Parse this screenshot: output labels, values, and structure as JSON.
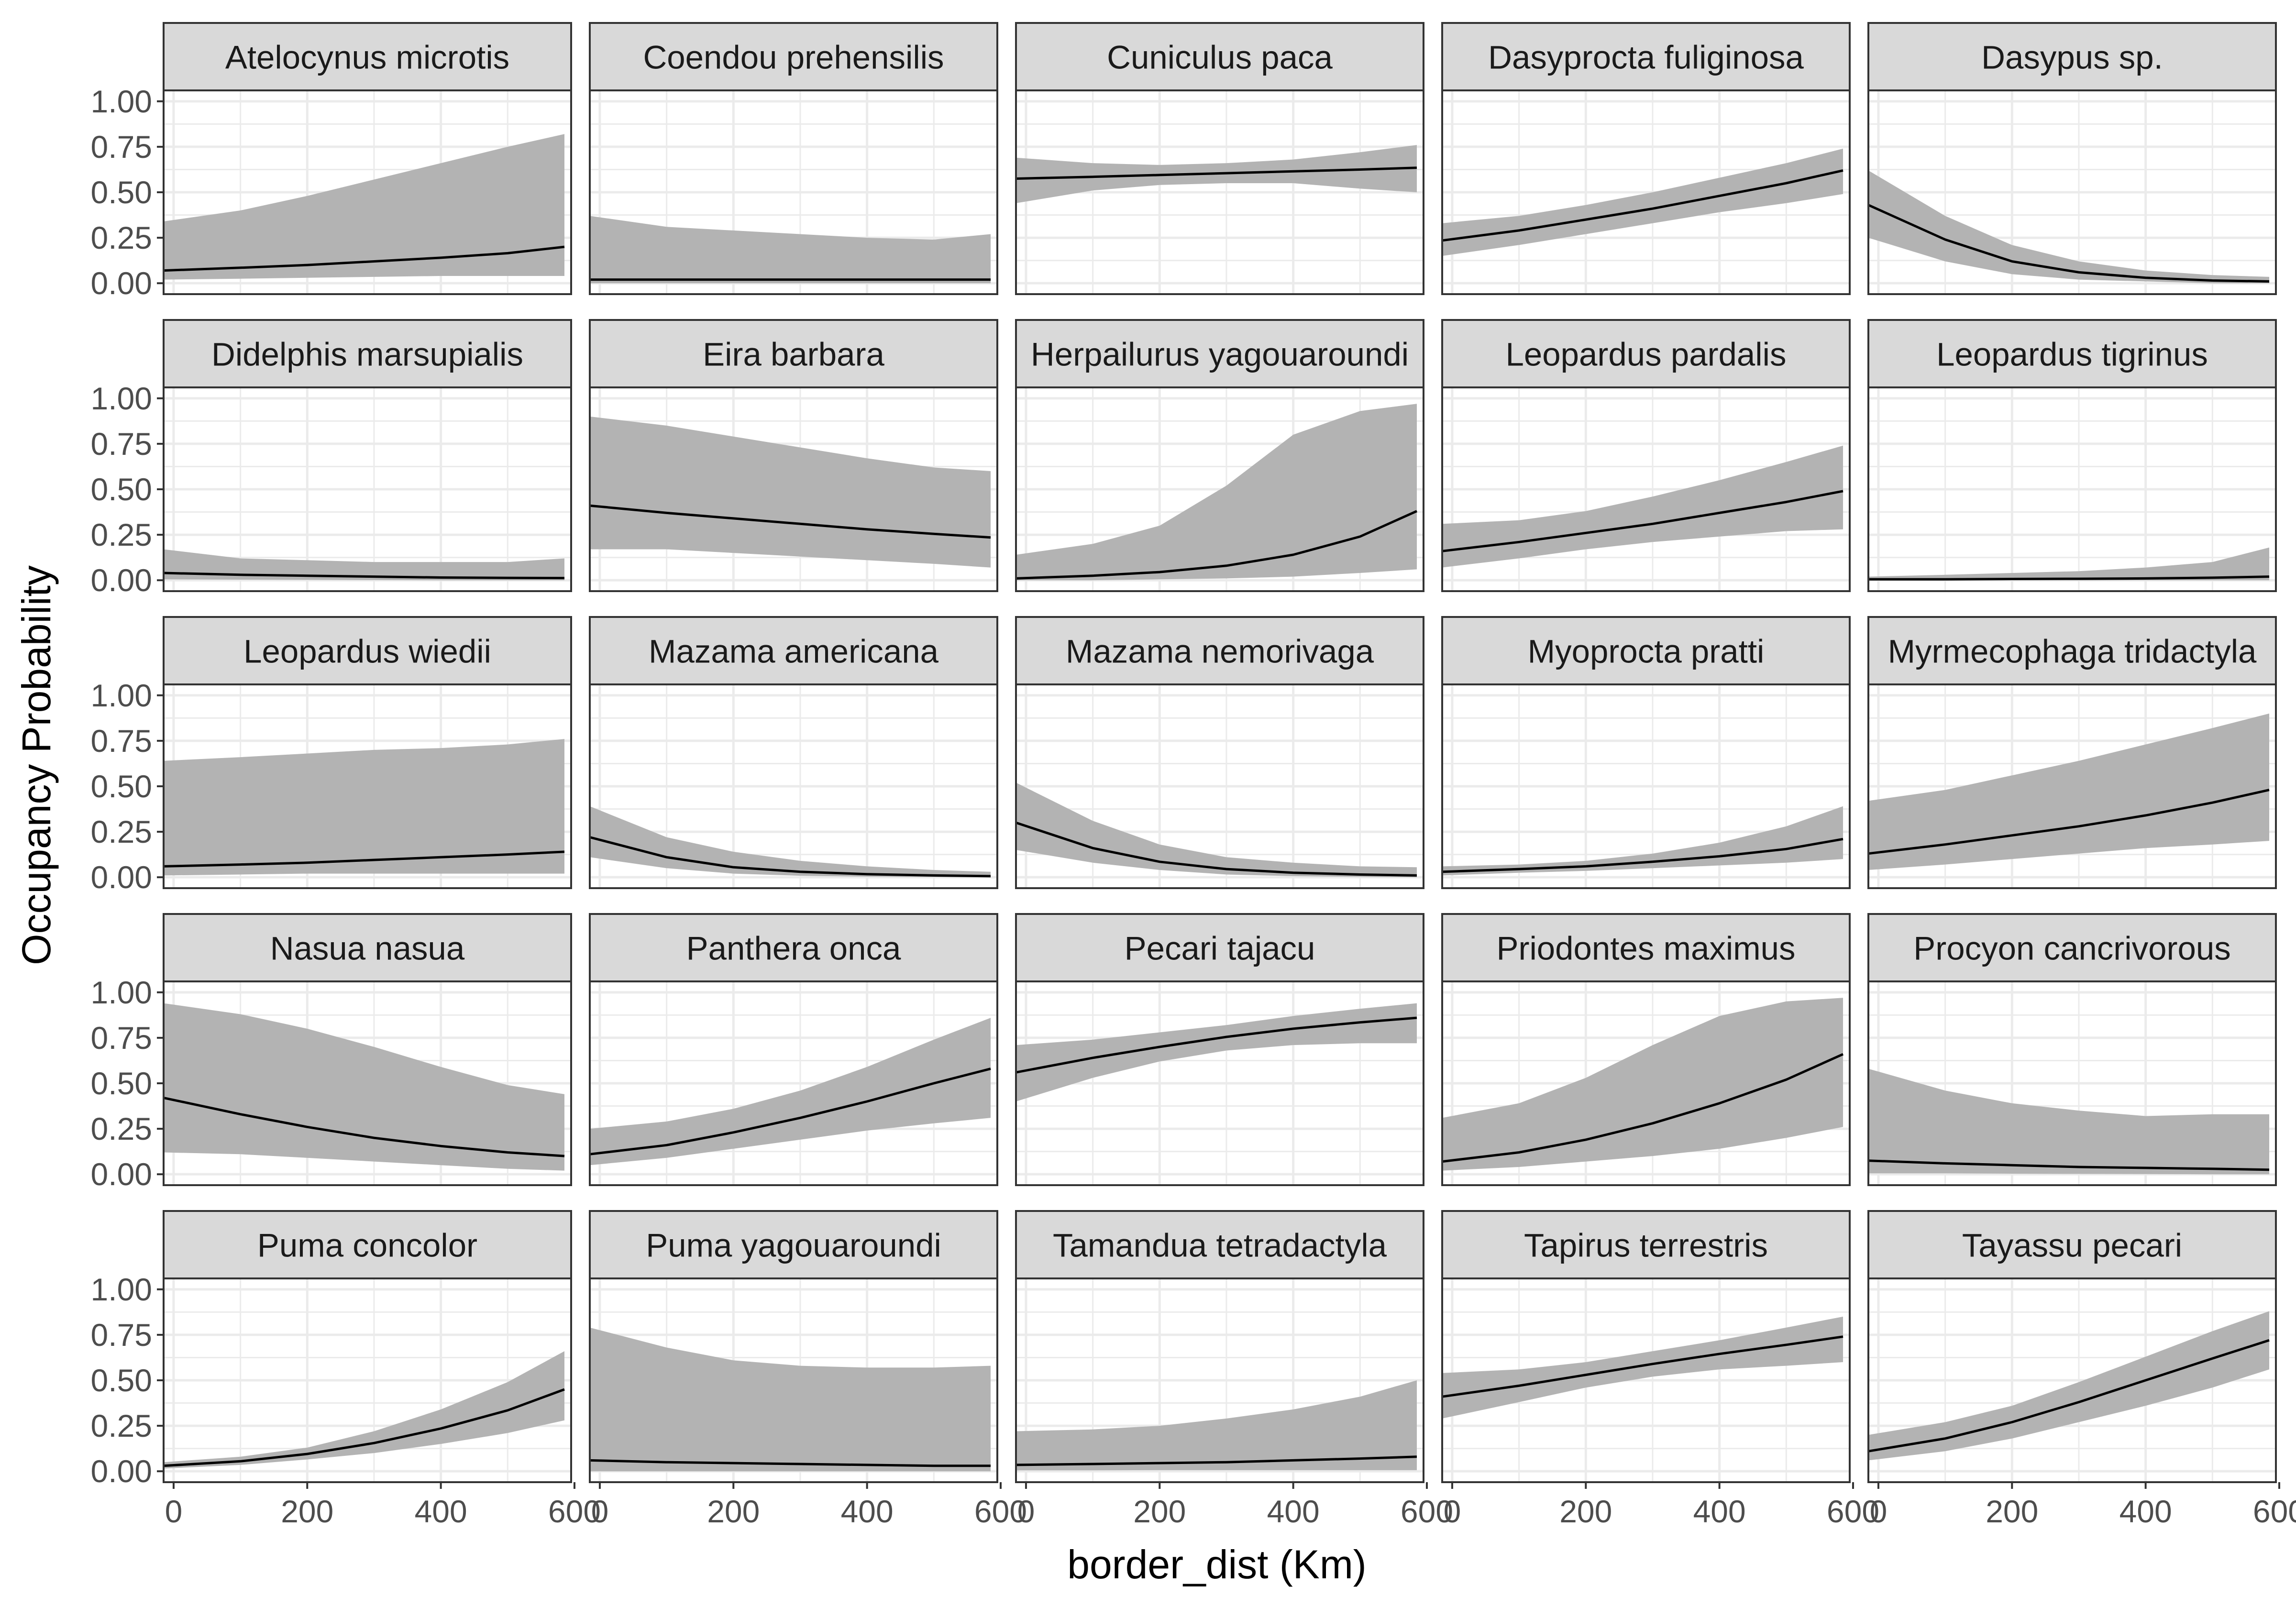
{
  "chart_data": {
    "type": "area",
    "facet_layout": "5 columns x 5 rows, shared axes",
    "grid": true,
    "theme": "bw",
    "xlabel": "border_dist (Km)",
    "ylabel": "Occupancy Probability",
    "xlim": [
      -15,
      595
    ],
    "ylim": [
      -0.06,
      1.06
    ],
    "x_ticks": [
      0,
      200,
      400,
      600
    ],
    "x_tick_labels": [
      "0",
      "200",
      "400",
      "600"
    ],
    "y_ticks": [
      0,
      0.25,
      0.5,
      0.75,
      1.0
    ],
    "y_tick_labels": [
      "0.00",
      "0.25",
      "0.50",
      "0.75",
      "1.00"
    ],
    "colors": {
      "ribbon": "#b3b3b3",
      "line": "#000000",
      "strip": "#d9d9d9",
      "grid": "#ebebeb",
      "border": "#333333"
    },
    "x": [
      -15,
      100,
      200,
      300,
      400,
      500,
      585
    ],
    "panels": [
      {
        "title": "Atelocynus microtis",
        "mean": [
          0.07,
          0.085,
          0.1,
          0.12,
          0.14,
          0.165,
          0.2
        ],
        "lower": [
          0.02,
          0.025,
          0.03,
          0.035,
          0.04,
          0.04,
          0.04
        ],
        "upper": [
          0.34,
          0.4,
          0.48,
          0.57,
          0.66,
          0.75,
          0.82
        ]
      },
      {
        "title": "Coendou prehensilis",
        "mean": [
          0.02,
          0.02,
          0.02,
          0.02,
          0.02,
          0.02,
          0.02
        ],
        "lower": [
          0.0,
          0.0,
          0.0,
          0.0,
          0.0,
          0.0,
          0.0
        ],
        "upper": [
          0.37,
          0.31,
          0.29,
          0.27,
          0.25,
          0.24,
          0.27
        ]
      },
      {
        "title": "Cuniculus paca",
        "mean": [
          0.575,
          0.585,
          0.595,
          0.605,
          0.615,
          0.625,
          0.635
        ],
        "lower": [
          0.44,
          0.51,
          0.54,
          0.55,
          0.55,
          0.52,
          0.5
        ],
        "upper": [
          0.69,
          0.66,
          0.65,
          0.66,
          0.68,
          0.72,
          0.76
        ]
      },
      {
        "title": "Dasyprocta fuliginosa",
        "mean": [
          0.235,
          0.29,
          0.35,
          0.41,
          0.48,
          0.55,
          0.62
        ],
        "lower": [
          0.15,
          0.21,
          0.27,
          0.33,
          0.39,
          0.44,
          0.49
        ],
        "upper": [
          0.33,
          0.37,
          0.43,
          0.5,
          0.58,
          0.66,
          0.74
        ]
      },
      {
        "title": "Dasypus sp.",
        "mean": [
          0.43,
          0.24,
          0.12,
          0.06,
          0.03,
          0.015,
          0.01
        ],
        "lower": [
          0.25,
          0.12,
          0.05,
          0.02,
          0.01,
          0.0,
          0.0
        ],
        "upper": [
          0.62,
          0.37,
          0.21,
          0.12,
          0.07,
          0.045,
          0.035
        ]
      },
      {
        "title": "Didelphis marsupialis",
        "mean": [
          0.04,
          0.03,
          0.025,
          0.02,
          0.015,
          0.013,
          0.012
        ],
        "lower": [
          0.005,
          0.003,
          0.002,
          0.001,
          0.0,
          0.0,
          0.0
        ],
        "upper": [
          0.17,
          0.12,
          0.11,
          0.1,
          0.1,
          0.1,
          0.12
        ]
      },
      {
        "title": "Eira barbara",
        "mean": [
          0.41,
          0.37,
          0.34,
          0.31,
          0.28,
          0.255,
          0.235
        ],
        "lower": [
          0.17,
          0.17,
          0.15,
          0.13,
          0.11,
          0.09,
          0.07
        ],
        "upper": [
          0.9,
          0.85,
          0.79,
          0.73,
          0.67,
          0.62,
          0.6
        ]
      },
      {
        "title": "Herpailurus yagouaroundi",
        "mean": [
          0.01,
          0.025,
          0.045,
          0.08,
          0.14,
          0.24,
          0.38
        ],
        "lower": [
          0.0,
          0.0,
          0.005,
          0.01,
          0.02,
          0.04,
          0.06
        ],
        "upper": [
          0.14,
          0.2,
          0.3,
          0.52,
          0.8,
          0.93,
          0.97
        ]
      },
      {
        "title": "Leopardus pardalis",
        "mean": [
          0.16,
          0.21,
          0.26,
          0.31,
          0.37,
          0.43,
          0.49
        ],
        "lower": [
          0.07,
          0.12,
          0.17,
          0.21,
          0.24,
          0.27,
          0.28
        ],
        "upper": [
          0.31,
          0.33,
          0.38,
          0.46,
          0.55,
          0.65,
          0.74
        ]
      },
      {
        "title": "Leopardus tigrinus",
        "mean": [
          0.005,
          0.005,
          0.007,
          0.008,
          0.01,
          0.014,
          0.02
        ],
        "lower": [
          0.0,
          0.0,
          0.0,
          0.0,
          0.0,
          0.0,
          0.0
        ],
        "upper": [
          0.02,
          0.03,
          0.04,
          0.05,
          0.07,
          0.1,
          0.18
        ]
      },
      {
        "title": "Leopardus wiedii",
        "mean": [
          0.06,
          0.07,
          0.08,
          0.095,
          0.11,
          0.125,
          0.14
        ],
        "lower": [
          0.01,
          0.015,
          0.02,
          0.02,
          0.02,
          0.02,
          0.02
        ],
        "upper": [
          0.64,
          0.66,
          0.68,
          0.7,
          0.71,
          0.73,
          0.76
        ]
      },
      {
        "title": "Mazama americana",
        "mean": [
          0.22,
          0.11,
          0.055,
          0.03,
          0.017,
          0.01,
          0.006
        ],
        "lower": [
          0.11,
          0.05,
          0.02,
          0.008,
          0.003,
          0.001,
          0.0
        ],
        "upper": [
          0.39,
          0.22,
          0.14,
          0.09,
          0.06,
          0.04,
          0.03
        ]
      },
      {
        "title": "Mazama nemorivaga",
        "mean": [
          0.3,
          0.16,
          0.085,
          0.045,
          0.025,
          0.015,
          0.01
        ],
        "lower": [
          0.15,
          0.08,
          0.04,
          0.015,
          0.006,
          0.002,
          0.0
        ],
        "upper": [
          0.52,
          0.31,
          0.18,
          0.11,
          0.08,
          0.06,
          0.055
        ]
      },
      {
        "title": "Myoprocta pratti",
        "mean": [
          0.03,
          0.045,
          0.06,
          0.085,
          0.115,
          0.155,
          0.21
        ],
        "lower": [
          0.01,
          0.025,
          0.035,
          0.05,
          0.065,
          0.08,
          0.1
        ],
        "upper": [
          0.06,
          0.07,
          0.09,
          0.13,
          0.19,
          0.28,
          0.39
        ]
      },
      {
        "title": "Myrmecophaga tridactyla",
        "mean": [
          0.13,
          0.18,
          0.23,
          0.28,
          0.34,
          0.41,
          0.48
        ],
        "lower": [
          0.04,
          0.07,
          0.1,
          0.13,
          0.16,
          0.18,
          0.2
        ],
        "upper": [
          0.42,
          0.48,
          0.56,
          0.64,
          0.73,
          0.82,
          0.9
        ]
      },
      {
        "title": "Nasua nasua",
        "mean": [
          0.42,
          0.33,
          0.26,
          0.2,
          0.155,
          0.12,
          0.1
        ],
        "lower": [
          0.12,
          0.11,
          0.09,
          0.07,
          0.05,
          0.03,
          0.02
        ],
        "upper": [
          0.94,
          0.88,
          0.8,
          0.7,
          0.59,
          0.49,
          0.44
        ]
      },
      {
        "title": "Panthera onca",
        "mean": [
          0.11,
          0.16,
          0.23,
          0.31,
          0.4,
          0.5,
          0.58
        ],
        "lower": [
          0.05,
          0.09,
          0.14,
          0.19,
          0.24,
          0.28,
          0.31
        ],
        "upper": [
          0.25,
          0.29,
          0.36,
          0.46,
          0.59,
          0.74,
          0.86
        ]
      },
      {
        "title": "Pecari tajacu",
        "mean": [
          0.56,
          0.64,
          0.7,
          0.755,
          0.8,
          0.835,
          0.86
        ],
        "lower": [
          0.4,
          0.53,
          0.62,
          0.68,
          0.71,
          0.72,
          0.72
        ],
        "upper": [
          0.71,
          0.74,
          0.78,
          0.82,
          0.87,
          0.91,
          0.94
        ]
      },
      {
        "title": "Priodontes maximus",
        "mean": [
          0.07,
          0.12,
          0.19,
          0.28,
          0.39,
          0.52,
          0.66
        ],
        "lower": [
          0.02,
          0.04,
          0.07,
          0.1,
          0.14,
          0.2,
          0.26
        ],
        "upper": [
          0.31,
          0.39,
          0.53,
          0.71,
          0.87,
          0.95,
          0.97
        ]
      },
      {
        "title": "Procyon cancrivorous",
        "mean": [
          0.075,
          0.06,
          0.05,
          0.04,
          0.035,
          0.03,
          0.025
        ],
        "lower": [
          0.005,
          0.005,
          0.003,
          0.002,
          0.001,
          0.0,
          0.0
        ],
        "upper": [
          0.58,
          0.46,
          0.39,
          0.35,
          0.32,
          0.33,
          0.33
        ]
      },
      {
        "title": "Puma concolor",
        "mean": [
          0.03,
          0.055,
          0.095,
          0.155,
          0.235,
          0.335,
          0.45
        ],
        "lower": [
          0.015,
          0.035,
          0.065,
          0.1,
          0.15,
          0.21,
          0.28
        ],
        "upper": [
          0.05,
          0.08,
          0.13,
          0.22,
          0.34,
          0.49,
          0.66
        ]
      },
      {
        "title": "Puma yagouaroundi",
        "mean": [
          0.06,
          0.05,
          0.045,
          0.04,
          0.035,
          0.03,
          0.03
        ],
        "lower": [
          0.0,
          0.0,
          0.0,
          0.0,
          0.0,
          0.0,
          0.0
        ],
        "upper": [
          0.79,
          0.68,
          0.61,
          0.58,
          0.57,
          0.57,
          0.58
        ]
      },
      {
        "title": "Tamandua tetradactyla",
        "mean": [
          0.035,
          0.04,
          0.045,
          0.05,
          0.06,
          0.07,
          0.08
        ],
        "lower": [
          0.005,
          0.005,
          0.006,
          0.006,
          0.006,
          0.006,
          0.006
        ],
        "upper": [
          0.22,
          0.23,
          0.25,
          0.29,
          0.34,
          0.41,
          0.5
        ]
      },
      {
        "title": "Tapirus terrestris",
        "mean": [
          0.41,
          0.47,
          0.53,
          0.59,
          0.645,
          0.695,
          0.74
        ],
        "lower": [
          0.29,
          0.38,
          0.46,
          0.52,
          0.56,
          0.58,
          0.6
        ],
        "upper": [
          0.54,
          0.56,
          0.6,
          0.66,
          0.72,
          0.79,
          0.85
        ]
      },
      {
        "title": "Tayassu pecari",
        "mean": [
          0.11,
          0.18,
          0.27,
          0.38,
          0.5,
          0.62,
          0.72
        ],
        "lower": [
          0.06,
          0.11,
          0.18,
          0.27,
          0.36,
          0.46,
          0.56
        ],
        "upper": [
          0.2,
          0.27,
          0.36,
          0.49,
          0.63,
          0.77,
          0.88
        ]
      }
    ]
  }
}
